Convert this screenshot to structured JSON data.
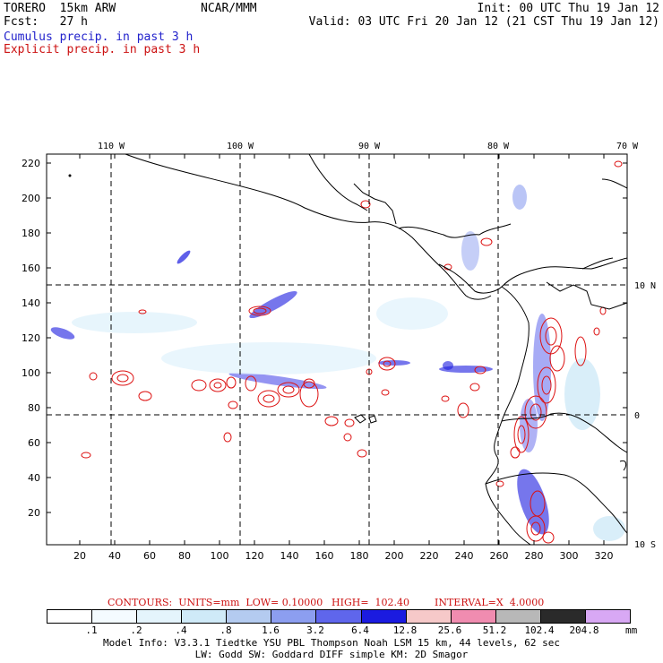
{
  "header": {
    "model": "TORERO  15km ARW",
    "org": "NCAR/MMM",
    "init": "Init: 00 UTC Thu 19 Jan 12",
    "fcst": "Fcst:   27 h",
    "valid": "Valid: 03 UTC Fri 20 Jan 12 (21 CST Thu 19 Jan 12)",
    "field1": "Cumulus precip. in past 3 h",
    "field2": "Explicit precip. in past 3 h"
  },
  "map": {
    "lon_labels": [
      "110 W",
      "100 W",
      "90 W",
      "80 W",
      "70 W"
    ],
    "lat_labels": [
      "10 N",
      "0",
      "10 S"
    ],
    "y_ticks": [
      "220",
      "200",
      "180",
      "160",
      "140",
      "120",
      "100",
      "80",
      "60",
      "40",
      "20"
    ],
    "x_ticks": [
      "20",
      "40",
      "60",
      "80",
      "100",
      "120",
      "140",
      "160",
      "180",
      "200",
      "220",
      "240",
      "260",
      "280",
      "300",
      "320"
    ]
  },
  "contours": {
    "units": "CONTOURS:  UNITS=mm  LOW= 0.10000",
    "high": "HIGH=  102.40",
    "interval": "INTERVAL=X  4.0000"
  },
  "legend": {
    "colors": [
      "#ffffff",
      "#f4fbff",
      "#e4f4fc",
      "#cfeaf8",
      "#b4cbf0",
      "#8c9ef0",
      "#5f66ec",
      "#1b1be0",
      "#f6c9c9",
      "#f08cb0",
      "#b8b8b8",
      "#2a2a2a",
      "#d8a8f4"
    ],
    "labels": [
      ".1",
      ".2",
      ".4",
      ".8",
      "1.6",
      "3.2",
      "6.4",
      "12.8",
      "25.6",
      "51.2",
      "102.4",
      "204.8"
    ],
    "unit": "mm"
  },
  "footer": {
    "line1": "Model Info: V3.3.1    Tiedtke YSU PBL  Thompson    Noah LSM  15 km,   44 levels,   62 sec",
    "line2": "LW: Godd SW: Goddard DIFF  simple KM: 2D Smagor"
  }
}
